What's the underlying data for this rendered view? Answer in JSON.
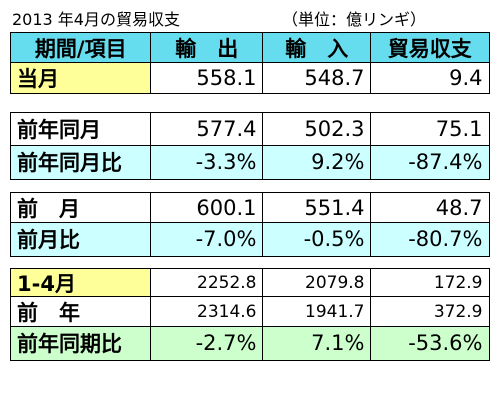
{
  "title": "2013 年4月の貿易収支",
  "unit": "（単位：億リンギ）",
  "table": {
    "header": [
      "期間/項目",
      "輸　出",
      "輸　入",
      "貿易収支"
    ],
    "rows": [
      [
        "当月",
        "558.1",
        "548.7",
        "9.4"
      ],
      [
        "前年同月",
        "577.4",
        "502.3",
        "75.1"
      ],
      [
        "前年同月比",
        "-3.3%",
        "9.2%",
        "-87.4%"
      ],
      [
        "前　月",
        "600.1",
        "551.4",
        "48.7"
      ],
      [
        "前月比",
        "-7.0%",
        "-0.5%",
        "-80.7%"
      ],
      [
        "1-4月",
        "2252.8",
        "2079.8",
        "172.9"
      ],
      [
        "前　年",
        "2314.6",
        "1941.7",
        "372.9"
      ],
      [
        "前年同期比",
        "-2.7%",
        "7.1%",
        "-53.6%"
      ]
    ]
  }
}
